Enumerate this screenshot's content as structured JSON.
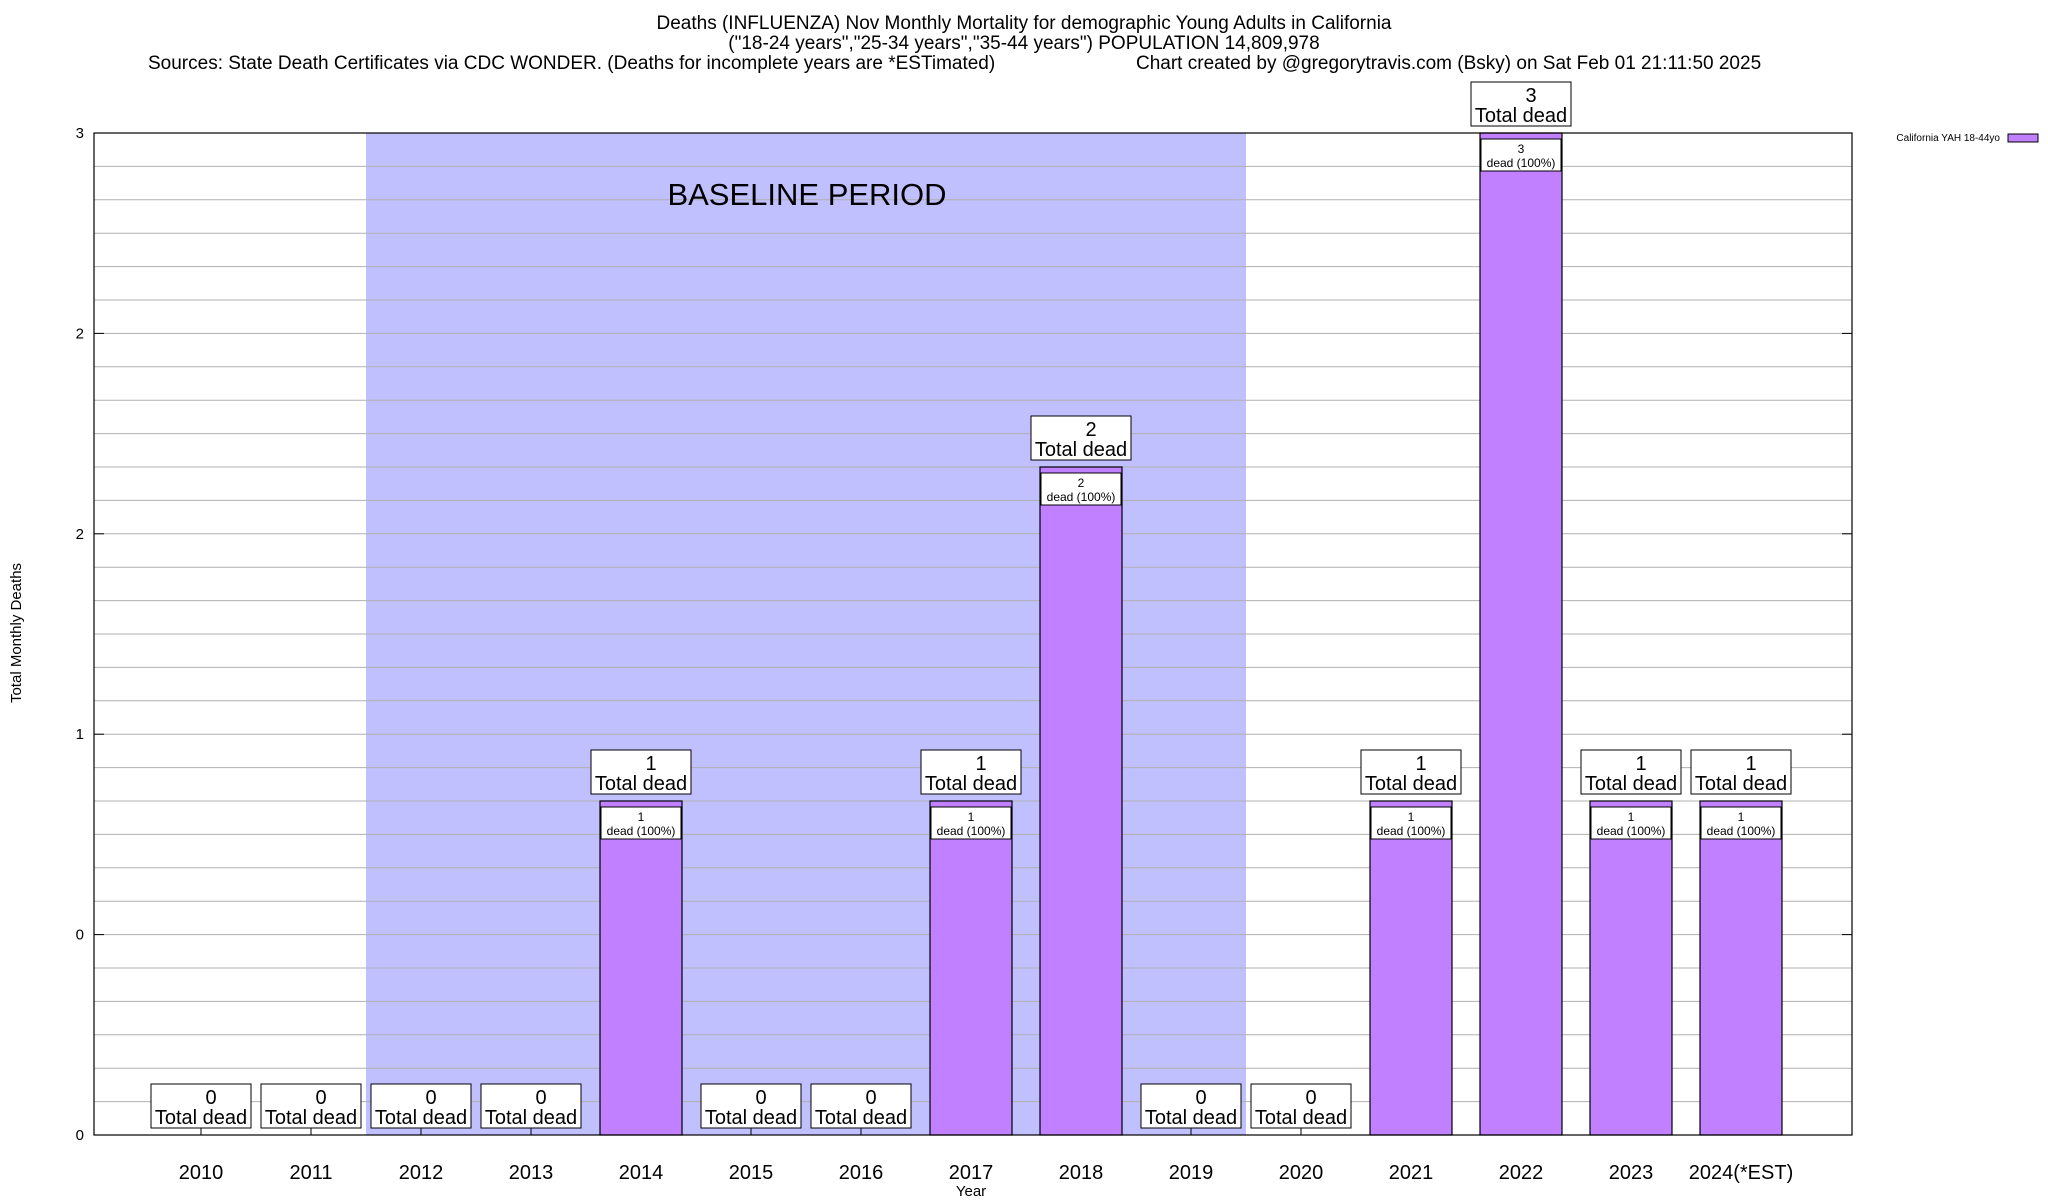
{
  "header": {
    "title": "Deaths (INFLUENZA) Nov Monthly Mortality for demographic Young Adults in California",
    "subtitle": "(\"18-24 years\",\"25-34 years\",\"35-44 years\") POPULATION 14,809,978",
    "sources": "Sources: State Death Certificates via CDC WONDER. (Deaths for incomplete years are *ESTimated)",
    "credit": "Chart created by @gregorytravis.com (Bsky) on Sat Feb 01 21:11:50 2025"
  },
  "chart_data": {
    "type": "bar",
    "title": "Deaths (INFLUENZA) Nov Monthly Mortality for demographic Young Adults in California",
    "xlabel": "Year",
    "ylabel": "Total Monthly Deaths",
    "ylim": [
      0,
      3
    ],
    "y_tick_labels": [
      "0",
      "0",
      "1",
      "2",
      "2",
      "3"
    ],
    "categories": [
      "2010",
      "2011",
      "2012",
      "2013",
      "2014",
      "2015",
      "2016",
      "2017",
      "2018",
      "2019",
      "2020",
      "2021",
      "2022",
      "2023",
      "2024(*EST)"
    ],
    "series": [
      {
        "name": "California YAH 18-44yo",
        "color": "#c080ff",
        "values": [
          0,
          0,
          0,
          0,
          1,
          0,
          0,
          1,
          2,
          0,
          0,
          1,
          3,
          1,
          1
        ]
      }
    ],
    "total_label_suffix": "Total dead",
    "inner_label_suffix": "dead (100%)",
    "annotation": "BASELINE PERIOD",
    "baseline_range": [
      "2012",
      "2019"
    ],
    "baseline_color": "#c0c0ff",
    "grid": true,
    "legend_position": "top-right"
  }
}
